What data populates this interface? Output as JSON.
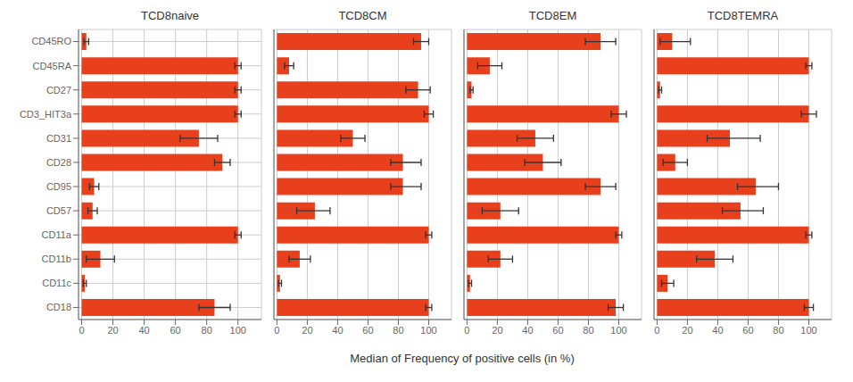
{
  "chart_data": [
    {
      "type": "bar",
      "title": "TCD8naive",
      "orientation": "horizontal",
      "grid": true,
      "color": "#E8401C",
      "xlabel": "Median of Frequency of positive cells (in %)",
      "categories": [
        "CD45RO",
        "CD45RA",
        "CD27",
        "CD3_HIT3a",
        "CD31",
        "CD28",
        "CD95",
        "CD57",
        "CD11a",
        "CD11b",
        "CD11c",
        "CD18"
      ],
      "values": [
        3,
        100,
        100,
        100,
        75,
        90,
        8,
        7,
        100,
        12,
        2,
        85
      ],
      "err_low": [
        1.5,
        2,
        2,
        2,
        12,
        5,
        3,
        3,
        2,
        9,
        1,
        10
      ],
      "err_high": [
        1.5,
        2,
        2,
        2,
        12,
        5,
        3,
        3,
        2,
        9,
        1,
        10
      ],
      "xlim": [
        -2,
        115
      ],
      "xticks": [
        0,
        20,
        40,
        60,
        80,
        100
      ]
    },
    {
      "type": "bar",
      "title": "TCD8CM",
      "orientation": "horizontal",
      "grid": true,
      "color": "#E8401C",
      "xlabel": "Median of Frequency of positive cells (in %)",
      "categories": [
        "CD45RO",
        "CD45RA",
        "CD27",
        "CD3_HIT3a",
        "CD31",
        "CD28",
        "CD95",
        "CD57",
        "CD11a",
        "CD11b",
        "CD11c",
        "CD18"
      ],
      "values": [
        95,
        8,
        93,
        100,
        50,
        83,
        83,
        25,
        100,
        15,
        2,
        100
      ],
      "err_low": [
        5,
        3,
        8,
        3,
        8,
        8,
        8,
        12,
        2,
        7,
        1,
        2
      ],
      "err_high": [
        5,
        3,
        8,
        3,
        8,
        12,
        12,
        10,
        2,
        7,
        1,
        2
      ],
      "xlim": [
        -2,
        115
      ],
      "xticks": [
        0,
        20,
        40,
        60,
        80,
        100
      ]
    },
    {
      "type": "bar",
      "title": "TCD8EM",
      "orientation": "horizontal",
      "grid": true,
      "color": "#E8401C",
      "xlabel": "Median of Frequency of positive cells (in %)",
      "categories": [
        "CD45RO",
        "CD45RA",
        "CD27",
        "CD3_HIT3a",
        "CD31",
        "CD28",
        "CD95",
        "CD57",
        "CD11a",
        "CD11b",
        "CD11c",
        "CD18"
      ],
      "values": [
        88,
        15,
        3,
        100,
        45,
        50,
        88,
        22,
        100,
        22,
        2,
        98
      ],
      "err_low": [
        10,
        8,
        1,
        5,
        12,
        12,
        10,
        12,
        2,
        8,
        1,
        5
      ],
      "err_high": [
        10,
        8,
        1,
        5,
        12,
        12,
        10,
        12,
        2,
        8,
        1,
        5
      ],
      "xlim": [
        -2,
        115
      ],
      "xticks": [
        0,
        20,
        40,
        60,
        80,
        100
      ]
    },
    {
      "type": "bar",
      "title": "TCD8TEMRA",
      "orientation": "horizontal",
      "grid": true,
      "color": "#E8401C",
      "xlabel": "Median of Frequency of positive cells (in %)",
      "categories": [
        "CD45RO",
        "CD45RA",
        "CD27",
        "CD3_HIT3a",
        "CD31",
        "CD28",
        "CD95",
        "CD57",
        "CD11a",
        "CD11b",
        "CD11c",
        "CD18"
      ],
      "values": [
        10,
        100,
        2,
        100,
        48,
        12,
        65,
        55,
        100,
        38,
        7,
        100
      ],
      "err_low": [
        8,
        2,
        1,
        5,
        15,
        8,
        12,
        12,
        2,
        12,
        4,
        3
      ],
      "err_high": [
        12,
        2,
        1,
        5,
        20,
        8,
        15,
        15,
        2,
        12,
        4,
        3
      ],
      "xlim": [
        -2,
        115
      ],
      "xticks": [
        0,
        20,
        40,
        60,
        80,
        100
      ]
    }
  ]
}
